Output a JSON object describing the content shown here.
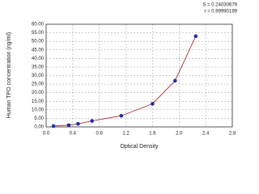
{
  "chart_data": {
    "type": "scatter",
    "annotations": [
      "S = 0.24030679",
      "r = 0.99990199"
    ],
    "xlabel": "Optical Density",
    "ylabel": "Human TPO concentration (ng/ml)",
    "series": [
      {
        "color": "#1f2fa8",
        "line_color": "#b03030",
        "x": [
          0.11,
          0.34,
          0.48,
          0.69,
          1.13,
          1.6,
          1.94,
          2.25
        ],
        "values": [
          0.5,
          1,
          1.8,
          3.5,
          6.5,
          13.5,
          27,
          53
        ]
      }
    ],
    "xlim": [
      0,
      2.8
    ],
    "xticks": [
      {
        "value": 0,
        "label": "0.0"
      },
      0.4,
      0.8,
      1.2,
      1.6,
      {
        "value": 2,
        "label": "2.0"
      },
      2.4,
      2.8
    ],
    "ylim": [
      0,
      60
    ],
    "yticks": [
      {
        "value": 0,
        "label": "0.00"
      },
      {
        "value": 5,
        "label": "5.00"
      },
      {
        "value": 10,
        "label": "10.00"
      },
      {
        "value": 15,
        "label": "15.00"
      },
      {
        "value": 20,
        "label": "20.00"
      },
      {
        "value": 25,
        "label": "25.00"
      },
      {
        "value": 30,
        "label": "30.00"
      },
      {
        "value": 35,
        "label": "35.00"
      },
      {
        "value": 40,
        "label": "40.00"
      },
      {
        "value": 45,
        "label": "45.00"
      },
      {
        "value": 50,
        "label": "50.00"
      },
      {
        "value": 55,
        "label": "55.00"
      },
      {
        "value": 60,
        "label": "60.00"
      }
    ],
    "grid": true
  }
}
